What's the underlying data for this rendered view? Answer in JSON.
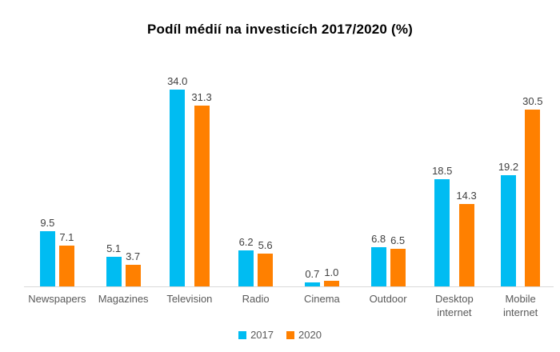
{
  "title": "Podíl médií na investicích 2017/2020 (%)",
  "colors": {
    "series_2017": "#00BCF2",
    "series_2020": "#FF8000",
    "axis_line": "#D9D9D9",
    "value_label_text": "#404040",
    "category_text": "#595959",
    "title_text": "#000000",
    "background": "#FFFFFF"
  },
  "legend": {
    "position": "bottom",
    "items": [
      {
        "label": "2017",
        "color": "#00BCF2"
      },
      {
        "label": "2020",
        "color": "#FF8000"
      }
    ]
  },
  "chart_data": {
    "type": "bar",
    "title": "Podíl médií na investicích 2017/2020 (%)",
    "categories": [
      "Newspapers",
      "Magazines",
      "Television",
      "Radio",
      "Cinema",
      "Outdoor",
      "Desktop internet",
      "Mobile internet"
    ],
    "series": [
      {
        "name": "2017",
        "color": "#00BCF2",
        "values": [
          9.5,
          5.1,
          34.0,
          6.2,
          0.7,
          6.8,
          18.5,
          19.2
        ]
      },
      {
        "name": "2020",
        "color": "#FF8000",
        "values": [
          7.1,
          3.7,
          31.3,
          5.6,
          1.0,
          6.5,
          14.3,
          30.5
        ]
      }
    ],
    "value_labels": true,
    "value_label_format": "0.0",
    "xlabel": "",
    "ylabel": "",
    "ylim": [
      0,
      34
    ],
    "grid": false,
    "y_axis_visible": false,
    "legend_position": "bottom"
  }
}
